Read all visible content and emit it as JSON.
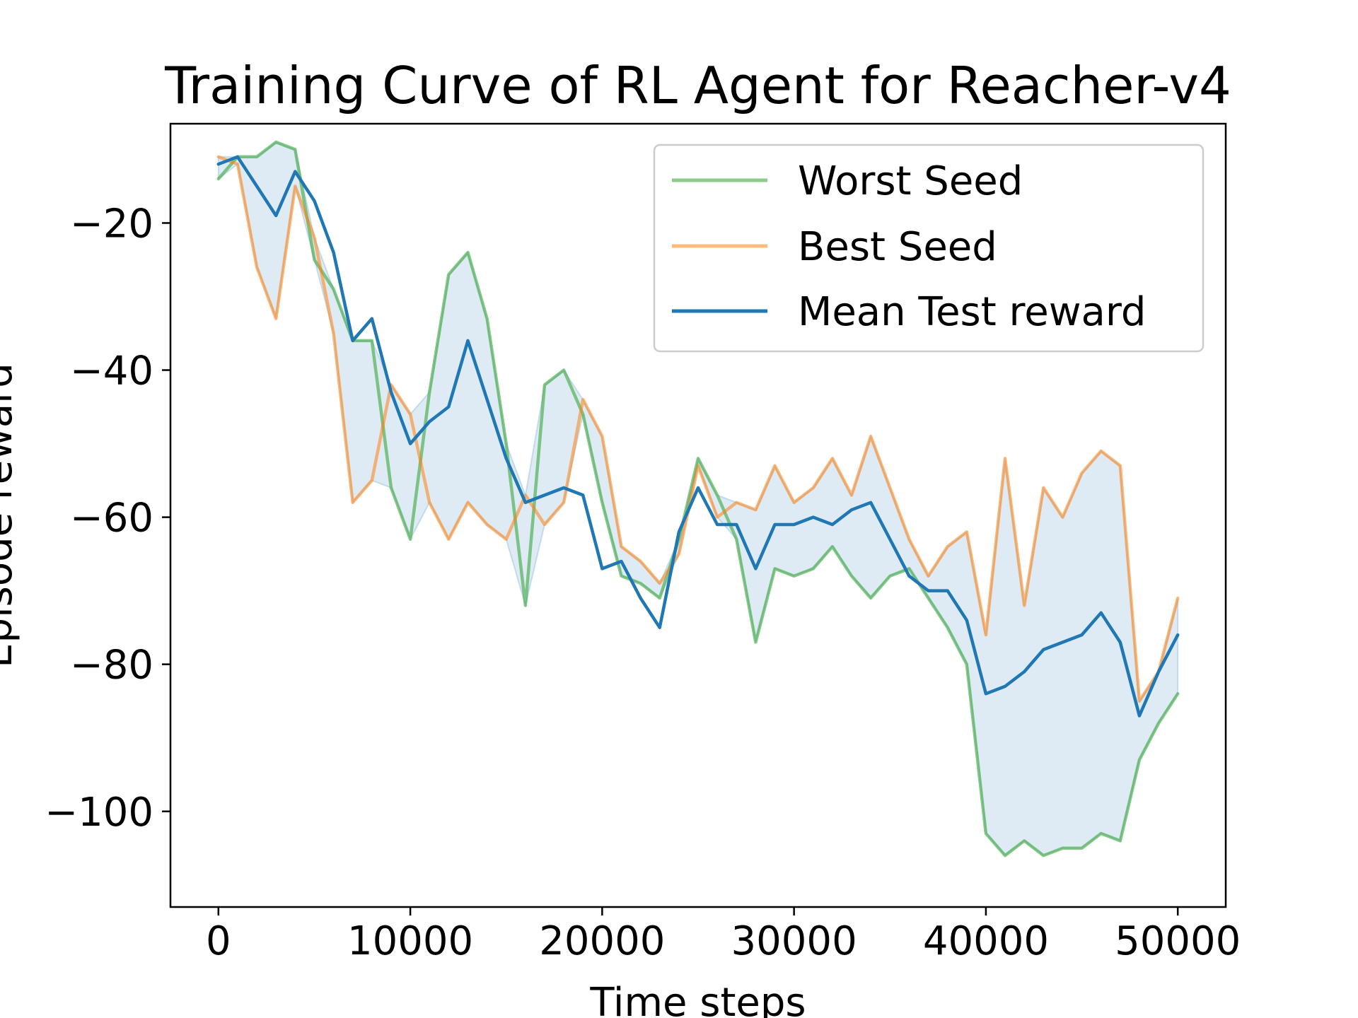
{
  "chart_data": {
    "type": "line",
    "title": "Training Curve of RL Agent for Reacher-v4",
    "xlabel": "Time steps",
    "ylabel": "Episode reward",
    "xlim": [
      -2500,
      52500
    ],
    "ylim": [
      -113,
      -6.5
    ],
    "x_ticks": [
      0,
      10000,
      20000,
      30000,
      40000,
      50000
    ],
    "x_tick_labels": [
      "0",
      "10000",
      "20000",
      "30000",
      "40000",
      "50000"
    ],
    "y_ticks": [
      -20,
      -40,
      -60,
      -80,
      -100
    ],
    "y_tick_labels": [
      "−20",
      "−40",
      "−60",
      "−80",
      "−100"
    ],
    "grid": false,
    "legend_position": "top-right",
    "colors": {
      "worst": "#2ca02c",
      "best": "#ff7f0e",
      "mean": "#1f77b4",
      "band": "#1f77b4"
    },
    "x": [
      0,
      1000,
      2000,
      3000,
      4000,
      5000,
      6000,
      7000,
      8000,
      9000,
      10000,
      11000,
      12000,
      13000,
      14000,
      15000,
      16000,
      17000,
      18000,
      19000,
      20000,
      21000,
      22000,
      23000,
      24000,
      25000,
      26000,
      27000,
      28000,
      29000,
      30000,
      31000,
      32000,
      33000,
      34000,
      35000,
      36000,
      37000,
      38000,
      39000,
      40000,
      41000,
      42000,
      43000,
      44000,
      45000,
      46000,
      47000,
      48000,
      49000,
      50000
    ],
    "series": [
      {
        "name": "Worst Seed",
        "key": "worst",
        "values": [
          -14,
          -11,
          -11,
          -9,
          -10,
          -25,
          -29,
          -36,
          -36,
          -56,
          -63,
          -43,
          -27,
          -24,
          -33,
          -50,
          -72,
          -42,
          -40,
          -46,
          -58,
          -68,
          -69,
          -71,
          -63,
          -52,
          -57,
          -63,
          -77,
          -67,
          -68,
          -67,
          -64,
          -68,
          -71,
          -68,
          -67,
          -71,
          -75,
          -80,
          -103,
          -106,
          -104,
          -106,
          -105,
          -105,
          -103,
          -104,
          -93,
          -88,
          -84
        ]
      },
      {
        "name": "Best Seed",
        "key": "best",
        "values": [
          -11,
          -12,
          -26,
          -33,
          -15,
          -22,
          -35,
          -58,
          -55,
          -42,
          -46,
          -58,
          -63,
          -58,
          -61,
          -63,
          -57,
          -61,
          -58,
          -44,
          -49,
          -64,
          -66,
          -69,
          -65,
          -53,
          -60,
          -58,
          -59,
          -53,
          -58,
          -56,
          -52,
          -57,
          -49,
          -56,
          -63,
          -68,
          -64,
          -62,
          -76,
          -52,
          -72,
          -56,
          -60,
          -54,
          -51,
          -53,
          -85,
          -81,
          -71
        ]
      },
      {
        "name": "Mean Test reward",
        "key": "mean",
        "values": [
          -12,
          -11,
          -15,
          -19,
          -13,
          -17,
          -24,
          -36,
          -33,
          -43,
          -50,
          -47,
          -45,
          -36,
          -44,
          -52,
          -58,
          -57,
          -56,
          -57,
          -67,
          -66,
          -71,
          -75,
          -62,
          -56,
          -61,
          -61,
          -67,
          -61,
          -61,
          -60,
          -61,
          -59,
          -58,
          -63,
          -68,
          -70,
          -70,
          -74,
          -84,
          -83,
          -81,
          -78,
          -77,
          -76,
          -73,
          -77,
          -87,
          -81,
          -76
        ]
      }
    ]
  }
}
